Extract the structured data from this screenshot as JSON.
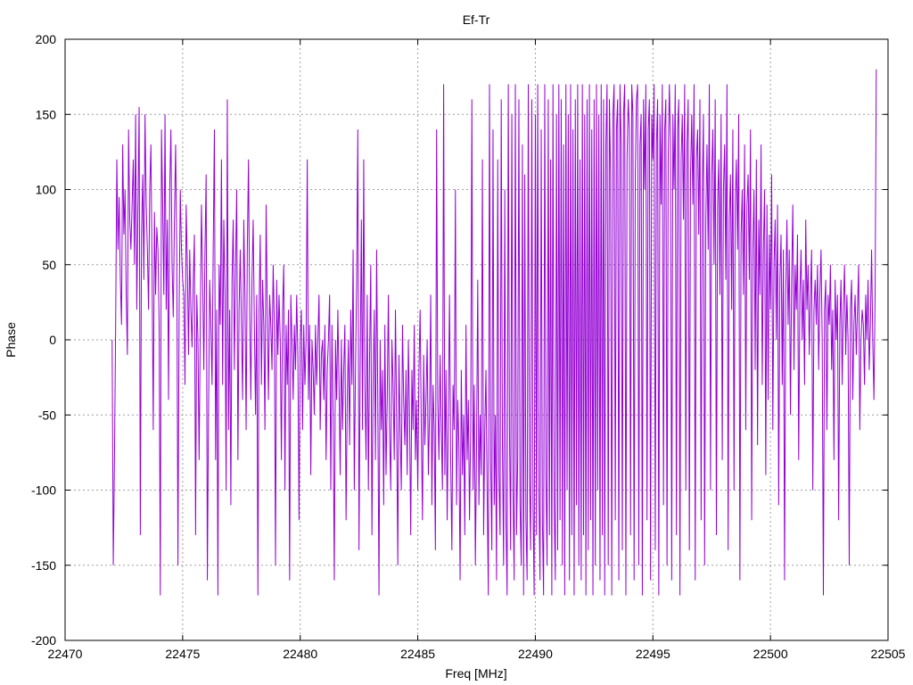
{
  "chart_data": {
    "type": "line",
    "title": "Ef-Tr",
    "xlabel": "Freq [MHz]",
    "ylabel": "Phase",
    "xlim": [
      22470,
      22505
    ],
    "ylim": [
      -200,
      200
    ],
    "xticks": [
      22470,
      22475,
      22480,
      22485,
      22490,
      22495,
      22500,
      22505
    ],
    "yticks": [
      -200,
      -150,
      -100,
      -50,
      0,
      50,
      100,
      150,
      200
    ],
    "grid": true,
    "legend": "none",
    "color": "#9400d3",
    "series": [
      {
        "x_start": 22472.0,
        "x_step": 0.05,
        "values": [
          0,
          -150,
          -80,
          10,
          120,
          60,
          95,
          40,
          10,
          130,
          70,
          100,
          30,
          -10,
          140,
          80,
          60,
          90,
          120,
          50,
          150,
          20,
          90,
          155,
          -130,
          70,
          110,
          40,
          150,
          90,
          60,
          20,
          100,
          130,
          45,
          -60,
          85,
          30,
          75,
          60,
          10,
          -170,
          140,
          90,
          30,
          150,
          20,
          80,
          -40,
          100,
          140,
          50,
          15,
          80,
          130,
          60,
          -150,
          20,
          100,
          60,
          40,
          30,
          -30,
          90,
          50,
          -10,
          60,
          20,
          -5,
          40,
          70,
          -130,
          30,
          0,
          -80,
          10,
          90,
          40,
          -20,
          60,
          110,
          -160,
          -50,
          40,
          10,
          -30,
          60,
          140,
          -80,
          20,
          -170,
          50,
          10,
          120,
          -30,
          80,
          30,
          -100,
          160,
          -60,
          20,
          -110,
          40,
          80,
          -20,
          50,
          100,
          -80,
          20,
          60,
          10,
          -40,
          80,
          30,
          -60,
          60,
          120,
          20,
          -40,
          40,
          80,
          10,
          -50,
          30,
          -170,
          20,
          70,
          -30,
          40,
          10,
          -60,
          90,
          20,
          -40,
          30,
          10,
          -20,
          50,
          10,
          -150,
          40,
          -10,
          30,
          0,
          -80,
          20,
          50,
          -100,
          10,
          -30,
          20,
          -160,
          30,
          0,
          -40,
          10,
          -20,
          30,
          -10,
          -120,
          0,
          20,
          -60,
          10,
          -30,
          0,
          120,
          -40,
          10,
          -90,
          0,
          -20,
          -50,
          10,
          -30,
          0,
          30,
          -60,
          -10,
          0,
          -40,
          10,
          -80,
          -20,
          0,
          30,
          -100,
          10,
          -50,
          -160,
          0,
          -40,
          20,
          -30,
          -90,
          0,
          -60,
          -20,
          10,
          -120,
          -40,
          0,
          -70,
          20,
          -30,
          60,
          -100,
          -20,
          40,
          140,
          -140,
          -20,
          80,
          -60,
          120,
          -30,
          -80,
          30,
          -100,
          -10,
          50,
          -130,
          -30,
          20,
          -80,
          60,
          -40,
          -170,
          0,
          -60,
          -20,
          -110,
          10,
          -90,
          -40,
          30,
          -60,
          -100,
          0,
          -30,
          -80,
          20,
          -50,
          -150,
          -10,
          -60,
          -100,
          10,
          -40,
          -70,
          -20,
          -90,
          0,
          -50,
          -130,
          -20,
          -60,
          10,
          -80,
          -40,
          -100,
          -20,
          20,
          -60,
          -120,
          -10,
          -70,
          -40,
          0,
          -90,
          -50,
          30,
          -110,
          -30,
          -60,
          -140,
          140,
          -40,
          -80,
          -10,
          -60,
          -100,
          170,
          -90,
          -20,
          -120,
          -50,
          30,
          -80,
          -140,
          -30,
          -60,
          100,
          -110,
          -40,
          -70,
          -160,
          -20,
          -90,
          -50,
          -130,
          10,
          -80,
          -40,
          -120,
          -60,
          160,
          -100,
          -30,
          -150,
          -70,
          40,
          -110,
          -50,
          -90,
          120,
          -130,
          -60,
          -20,
          -100,
          -170,
          170,
          -80,
          -140,
          140,
          -110,
          -50,
          -160,
          120,
          -90,
          -130,
          160,
          -70,
          -150,
          100,
          -120,
          -170,
          170,
          -60,
          -140,
          150,
          -100,
          -160,
          170,
          -130,
          -80,
          160,
          -110,
          -150,
          130,
          -170,
          110,
          -120,
          -160,
          170,
          -90,
          -140,
          160,
          -110,
          -170,
          150,
          -130,
          170,
          -100,
          -160,
          140,
          -120,
          -170,
          170,
          -90,
          -150,
          160,
          -130,
          120,
          -170,
          170,
          -110,
          -160,
          150,
          -140,
          170,
          -120,
          160,
          -150,
          130,
          -170,
          170,
          -100,
          150,
          -160,
          170,
          -130,
          140,
          -170,
          160,
          -110,
          170,
          -150,
          120,
          -160,
          170,
          -130,
          150,
          -170,
          160,
          -140,
          170,
          -120,
          140,
          -170,
          160,
          -150,
          170,
          -100,
          150,
          -160,
          170,
          -130,
          160,
          -170,
          130,
          170,
          -150,
          160,
          110,
          -170,
          150,
          170,
          -120,
          140,
          160,
          -160,
          170,
          130,
          -140,
          150,
          170,
          -170,
          120,
          160,
          140,
          -130,
          170,
          150,
          -160,
          110,
          160,
          170,
          -150,
          130,
          150,
          -170,
          160,
          100,
          170,
          -120,
          140,
          160,
          -160,
          150,
          120,
          170,
          -140,
          130,
          160,
          -170,
          150,
          90,
          170,
          -110,
          140,
          160,
          -150,
          120,
          170,
          130,
          -160,
          150,
          100,
          170,
          -130,
          140,
          160,
          -170,
          120,
          150,
          80,
          170,
          -100,
          130,
          160,
          -140,
          110,
          150,
          90,
          170,
          -160,
          120,
          140,
          70,
          160,
          -120,
          100,
          150,
          -150,
          80,
          130,
          60,
          170,
          -100,
          110,
          140,
          50,
          160,
          -130,
          90,
          120,
          30,
          150,
          -80,
          100,
          130,
          40,
          170,
          -140,
          80,
          110,
          20,
          140,
          -100,
          90,
          120,
          60,
          150,
          -160,
          70,
          100,
          30,
          130,
          -60,
          90,
          110,
          40,
          140,
          -120,
          60,
          100,
          -20,
          120,
          -70,
          80,
          30,
          130,
          -30,
          60,
          100,
          -90,
          90,
          -40,
          70,
          20,
          110,
          -60,
          50,
          80,
          0,
          90,
          -110,
          40,
          70,
          -30,
          60,
          -160,
          30,
          80,
          10,
          60,
          -50,
          40,
          90,
          -20,
          50,
          20,
          70,
          -80,
          30,
          60,
          0,
          40,
          -30,
          80,
          20,
          50,
          -10,
          30,
          60,
          -100,
          20,
          40,
          10,
          50,
          -20,
          30,
          60,
          0,
          -170,
          20,
          40,
          -60,
          30,
          10,
          50,
          -20,
          20,
          -80,
          40,
          0,
          30,
          -120,
          10,
          40,
          -30,
          20,
          50,
          -10,
          30,
          0,
          -150,
          20,
          40,
          -40,
          10,
          30,
          -10,
          20,
          50,
          -60,
          0,
          20,
          10,
          -30,
          30,
          0,
          40,
          -20,
          10,
          60,
          0,
          -40,
          30,
          180
        ]
      }
    ]
  }
}
